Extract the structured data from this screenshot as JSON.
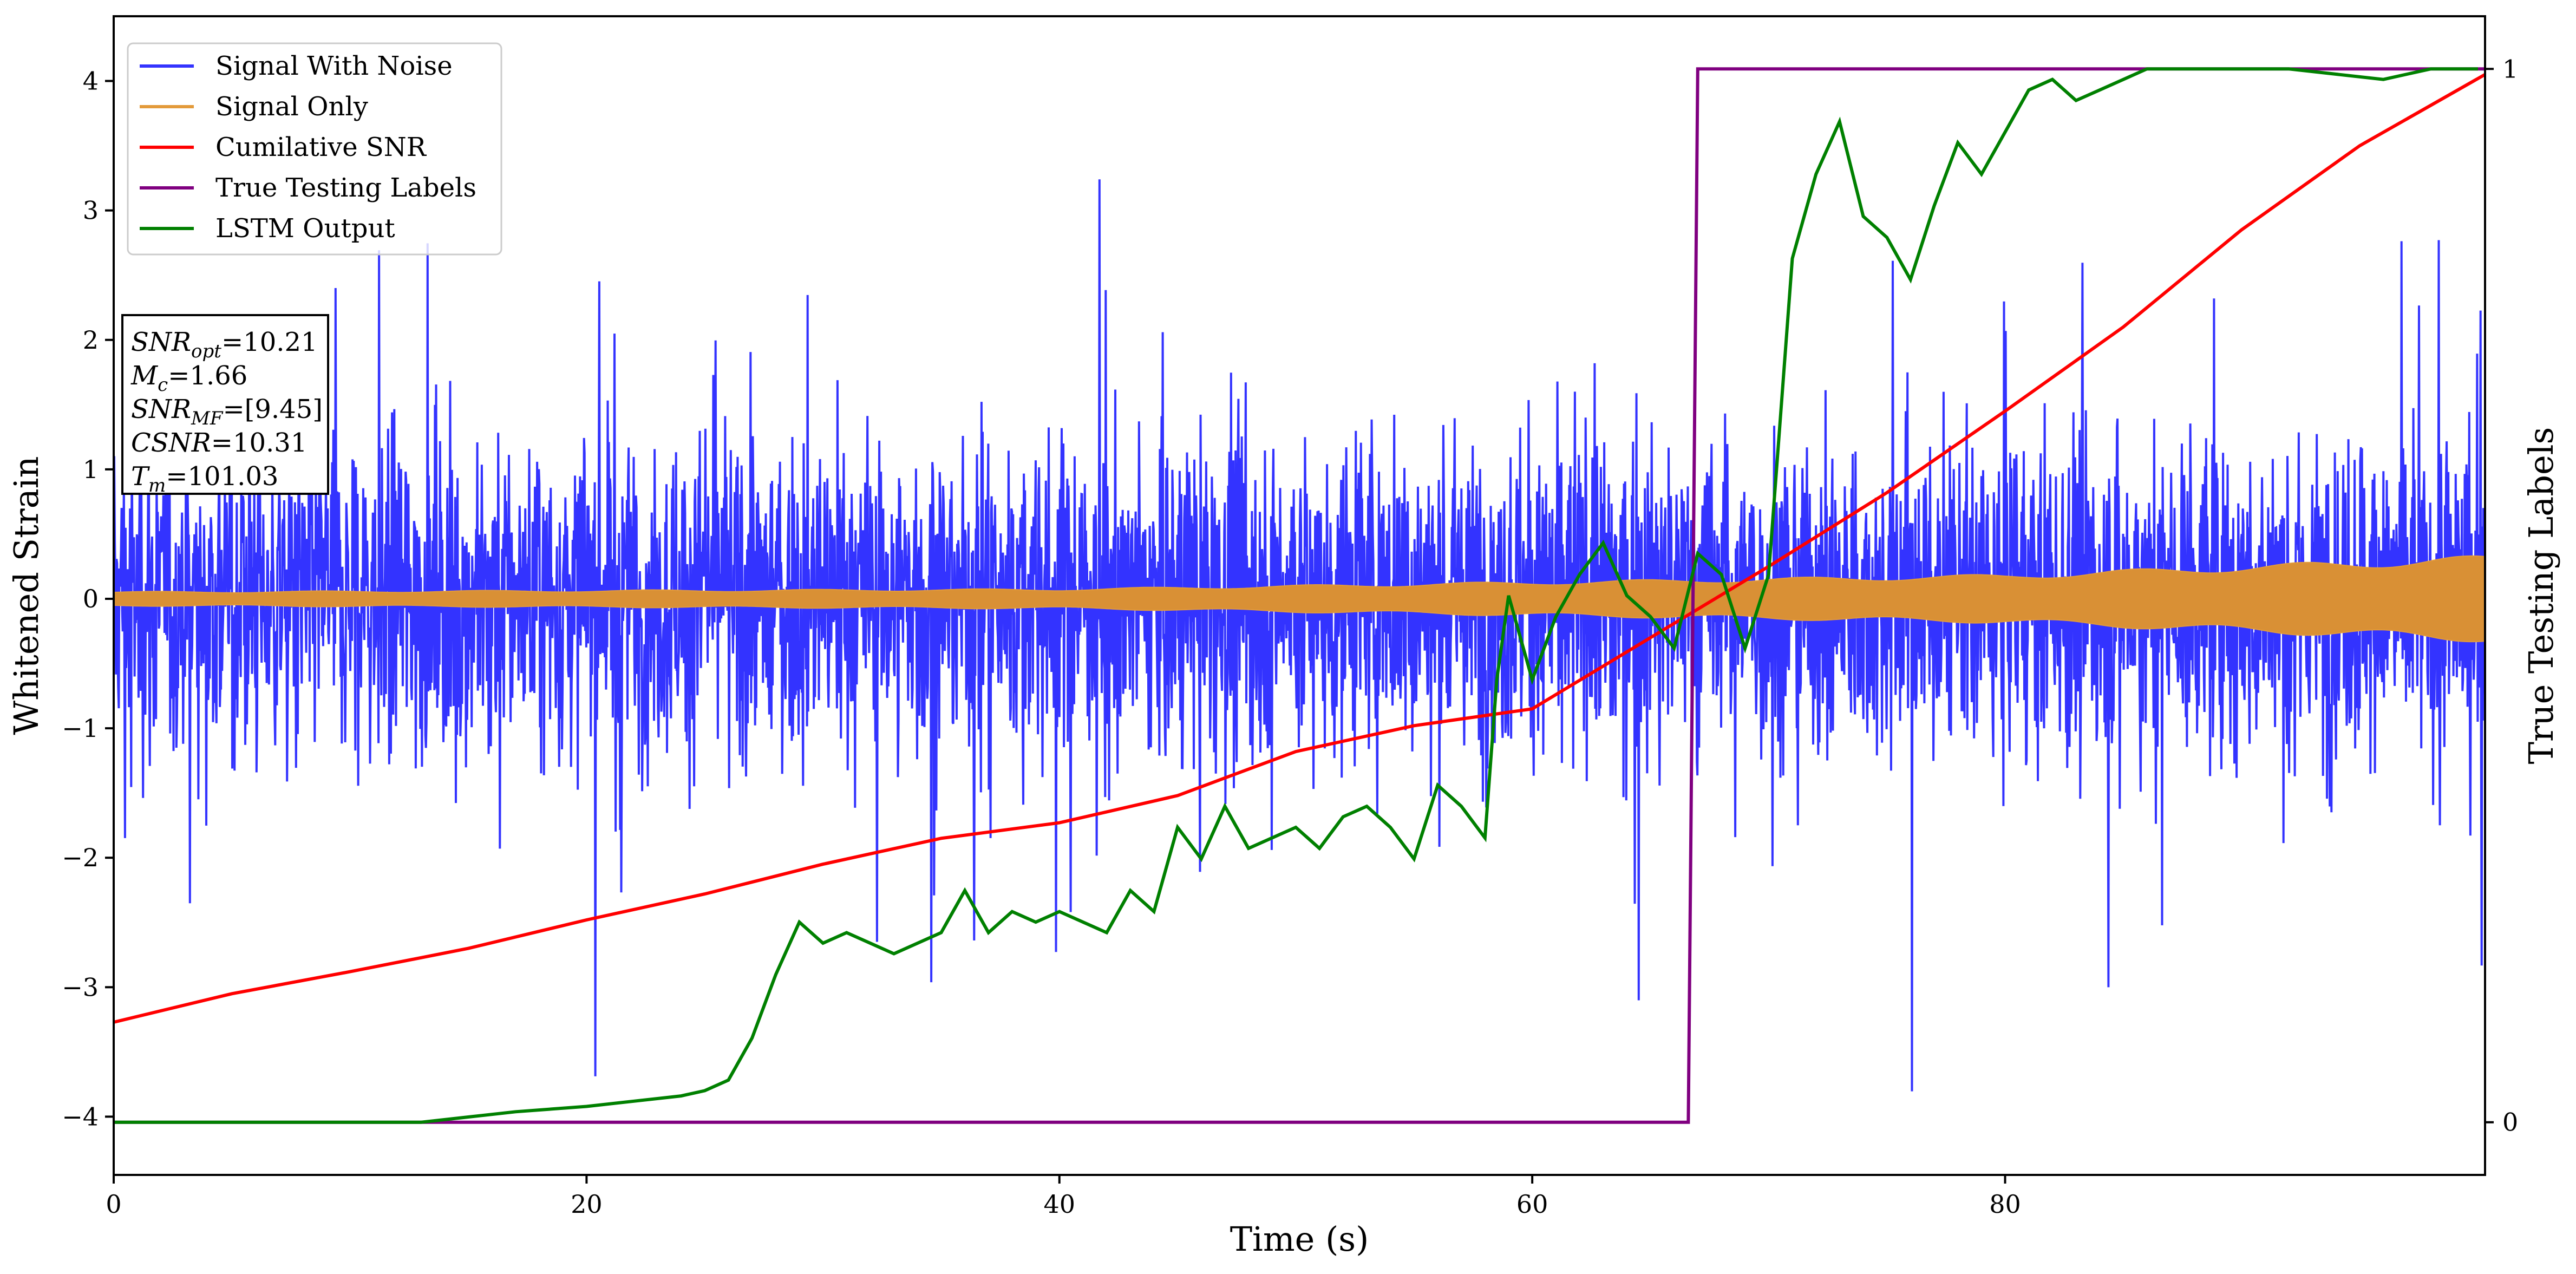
{
  "chart_data": {
    "type": "line",
    "xlabel": "Time (s)",
    "ylabel": "Whitened Strain",
    "y2label": "True Testing Labels",
    "xlim": [
      0,
      100.3
    ],
    "ylim": [
      -4.45,
      4.5
    ],
    "y2lim": [
      -0.05,
      1.05
    ],
    "x_ticks": [
      0,
      20,
      40,
      60,
      80
    ],
    "y_ticks": [
      -4,
      -3,
      -2,
      -1,
      0,
      1,
      2,
      3,
      4
    ],
    "y2_ticks": [
      0,
      1
    ],
    "grid": false,
    "legend_position": "top-left",
    "series": [
      {
        "name": "Signal With Noise",
        "axis": "left",
        "color": "#3333ff",
        "kind": "noisy",
        "typical_amplitude": 0.95,
        "min": -4.1,
        "max": 4.1
      },
      {
        "name": "Signal Only",
        "axis": "left",
        "color": "#e39a3a",
        "kind": "chirp_envelope",
        "envelope": {
          "x": [
            0,
            40,
            60,
            80,
            100.3
          ],
          "y": [
            0.05,
            0.07,
            0.12,
            0.17,
            0.3
          ]
        }
      },
      {
        "name": "Cumilative SNR",
        "axis": "left",
        "color": "#ff0000",
        "x": [
          0,
          5,
          10,
          15,
          20,
          25,
          30,
          35,
          40,
          45,
          50,
          55,
          60,
          65,
          70,
          75,
          80,
          85,
          90,
          95,
          100.3
        ],
        "y": [
          -3.27,
          -3.05,
          -2.88,
          -2.7,
          -2.48,
          -2.28,
          -2.05,
          -1.85,
          -1.73,
          -1.52,
          -1.18,
          -0.98,
          -0.85,
          -0.3,
          0.25,
          0.82,
          1.45,
          2.1,
          2.85,
          3.5,
          4.05
        ]
      },
      {
        "name": "True Testing Labels",
        "axis": "right",
        "color": "#800080",
        "x": [
          0,
          66.6,
          67.0,
          100.3
        ],
        "y": [
          0,
          0,
          1,
          1
        ]
      },
      {
        "name": "LSTM Output",
        "axis": "right",
        "color": "#008000",
        "x": [
          0,
          13,
          15,
          17,
          20,
          22,
          24,
          25,
          26,
          27,
          28,
          29,
          30,
          31,
          32,
          33,
          35,
          36,
          37,
          38,
          39,
          40,
          42,
          43,
          44,
          45,
          46,
          47,
          48,
          50,
          51,
          52,
          53,
          54,
          55,
          56,
          57,
          58,
          58.5,
          59,
          60,
          61,
          62,
          63,
          64,
          65,
          66,
          67,
          68,
          69,
          70,
          71,
          72,
          73,
          74,
          75,
          76,
          77,
          78,
          79,
          80,
          81,
          82,
          83,
          84,
          85,
          86,
          87,
          88,
          90,
          92,
          94,
          96,
          97,
          98,
          99,
          100
        ],
        "y": [
          0,
          0,
          0.005,
          0.01,
          0.015,
          0.02,
          0.025,
          0.03,
          0.04,
          0.08,
          0.14,
          0.19,
          0.17,
          0.18,
          0.17,
          0.16,
          0.18,
          0.22,
          0.18,
          0.2,
          0.19,
          0.2,
          0.18,
          0.22,
          0.2,
          0.28,
          0.25,
          0.3,
          0.26,
          0.28,
          0.26,
          0.29,
          0.3,
          0.28,
          0.25,
          0.32,
          0.3,
          0.27,
          0.42,
          0.5,
          0.42,
          0.48,
          0.52,
          0.55,
          0.5,
          0.48,
          0.45,
          0.54,
          0.52,
          0.45,
          0.52,
          0.82,
          0.9,
          0.95,
          0.86,
          0.84,
          0.8,
          0.87,
          0.93,
          0.9,
          0.94,
          0.98,
          0.99,
          0.97,
          0.98,
          0.99,
          1.0,
          1.0,
          1.0,
          1.0,
          1.0,
          0.995,
          0.99,
          0.995,
          1.0,
          1.0,
          1.0
        ]
      }
    ],
    "annotation": {
      "lines": [
        {
          "name": "SNR",
          "sub": "opt",
          "value": "=10.21"
        },
        {
          "name": "M",
          "sub": "c",
          "value": "=1.66"
        },
        {
          "name": "SNR",
          "sub": "MF",
          "value": "=[9.45]"
        },
        {
          "name": "CSNR",
          "sub": "",
          "value": "=10.31"
        },
        {
          "name": "T",
          "sub": "m",
          "value": "=101.03"
        }
      ]
    }
  }
}
